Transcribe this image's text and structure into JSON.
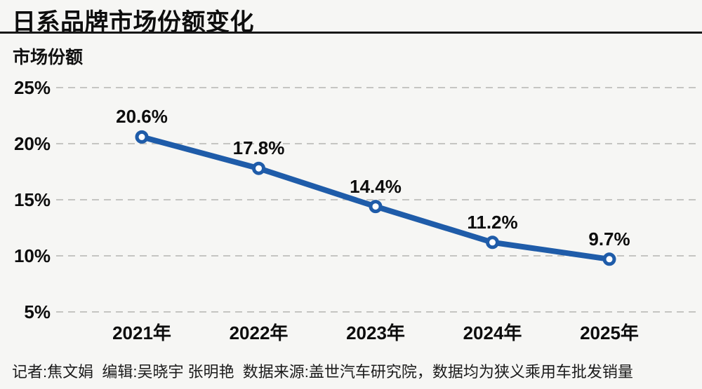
{
  "header": {
    "title": "日系品牌市场份额变化"
  },
  "chart_data": {
    "type": "line",
    "title": "日系品牌市场份额变化",
    "ylabel": "市场份额",
    "xlabel": "",
    "categories": [
      "2021年",
      "2022年",
      "2023年",
      "2024年",
      "2025年"
    ],
    "values": [
      20.6,
      17.8,
      14.4,
      11.2,
      9.7
    ],
    "data_labels": [
      "20.6%",
      "17.8%",
      "14.4%",
      "11.2%",
      "9.7%"
    ],
    "yticks": [
      25,
      20,
      15,
      10,
      5
    ],
    "ytick_labels": [
      "25%",
      "20%",
      "15%",
      "10%",
      "5%"
    ],
    "ylim": [
      5,
      25
    ],
    "grid": "horizontal-dashed",
    "legend": "none",
    "line_color": "#1f5ca9",
    "marker": "open-circle",
    "marker_fill": "#ffffff",
    "grid_color": "#c5c5c2",
    "background_color": "#f6f6f4",
    "text_color": "#0d0d0d"
  },
  "footer": {
    "credits": "记者:焦文娟  编辑:吴晓宇 张明艳  数据来源:盖世汽车研究院，数据均为狭义乘用车批发销量"
  }
}
